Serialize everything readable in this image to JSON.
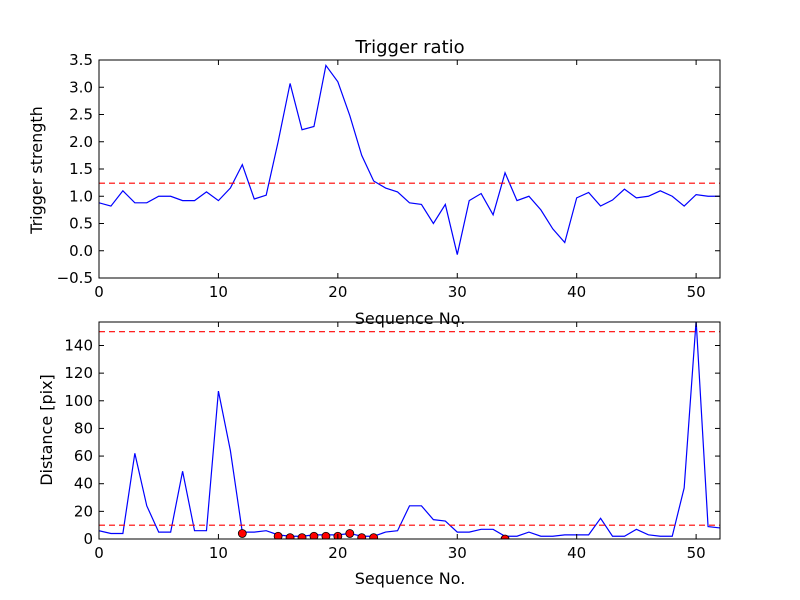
{
  "chart_data": [
    {
      "type": "line",
      "title": "Trigger ratio",
      "xlabel": "Sequence No.",
      "ylabel": "Trigger strength",
      "xlim": [
        0,
        52
      ],
      "ylim": [
        -0.5,
        3.5
      ],
      "xticks": [
        0,
        10,
        20,
        30,
        40,
        50
      ],
      "yticks": [
        -0.5,
        0.0,
        0.5,
        1.0,
        1.5,
        2.0,
        2.5,
        3.0,
        3.5
      ],
      "ytick_labels": [
        "−0.5",
        "0.0",
        "0.5",
        "1.0",
        "1.5",
        "2.0",
        "2.5",
        "3.0",
        "3.5"
      ],
      "grid": false,
      "series": [
        {
          "color": "#0000ff",
          "style": "solid",
          "x": [
            0,
            1,
            2,
            3,
            4,
            5,
            6,
            7,
            8,
            9,
            10,
            11,
            12,
            13,
            14,
            15,
            16,
            17,
            18,
            19,
            20,
            21,
            22,
            23,
            24,
            25,
            26,
            27,
            28,
            29,
            30,
            31,
            32,
            33,
            34,
            35,
            36,
            37,
            38,
            39,
            40,
            41,
            42,
            43,
            44,
            45,
            46,
            47,
            48,
            49,
            50,
            51,
            52
          ],
          "values": [
            0.88,
            0.82,
            1.1,
            0.88,
            0.88,
            1.0,
            1.0,
            0.92,
            0.92,
            1.08,
            0.92,
            1.15,
            1.58,
            0.95,
            1.02,
            2.0,
            3.07,
            2.22,
            2.28,
            3.4,
            3.1,
            2.48,
            1.75,
            1.28,
            1.15,
            1.08,
            0.88,
            0.85,
            0.5,
            0.85,
            -0.07,
            0.92,
            1.05,
            0.66,
            1.43,
            0.92,
            1.0,
            0.75,
            0.4,
            0.15,
            0.97,
            1.07,
            0.82,
            0.93,
            1.13,
            0.97,
            1.0,
            1.1,
            1.0,
            0.82,
            1.03,
            1.0,
            1.0
          ]
        },
        {
          "color": "#ff0000",
          "style": "dashed",
          "x": [
            0,
            52
          ],
          "values": [
            1.24,
            1.24
          ]
        }
      ]
    },
    {
      "type": "line",
      "title": "",
      "xlabel": "Sequence No.",
      "ylabel": "Distance [pix]",
      "xlim": [
        0,
        52
      ],
      "ylim": [
        0,
        157
      ],
      "xticks": [
        0,
        10,
        20,
        30,
        40,
        50
      ],
      "yticks": [
        0,
        20,
        40,
        60,
        80,
        100,
        120,
        140
      ],
      "ytick_labels": [
        "0",
        "20",
        "40",
        "60",
        "80",
        "100",
        "120",
        "140"
      ],
      "grid": false,
      "series": [
        {
          "color": "#0000ff",
          "style": "solid",
          "x": [
            0,
            1,
            2,
            3,
            4,
            5,
            6,
            7,
            8,
            9,
            10,
            11,
            12,
            13,
            14,
            15,
            16,
            17,
            18,
            19,
            20,
            21,
            22,
            23,
            24,
            25,
            26,
            27,
            28,
            29,
            30,
            31,
            32,
            33,
            34,
            35,
            36,
            37,
            38,
            39,
            40,
            41,
            42,
            43,
            44,
            45,
            46,
            47,
            48,
            49,
            50,
            51,
            52
          ],
          "values": [
            6,
            4,
            4,
            62,
            24,
            5,
            5,
            49,
            6,
            6,
            107,
            64,
            5,
            5,
            6,
            3,
            2,
            2,
            3,
            3,
            3,
            4,
            2,
            2,
            5,
            6,
            24,
            24,
            14,
            13,
            5,
            5,
            7,
            7,
            2,
            2,
            5,
            2,
            2,
            3,
            3,
            3,
            15,
            2,
            2,
            7,
            3,
            2,
            2,
            37,
            158,
            9,
            8
          ]
        },
        {
          "color": "#ff0000",
          "style": "dashed",
          "x": [
            0,
            52
          ],
          "values": [
            10,
            10
          ]
        },
        {
          "color": "#ff0000",
          "style": "dashed",
          "x": [
            0,
            52
          ],
          "values": [
            150,
            150
          ]
        },
        {
          "color": "#ff0000",
          "style": "markers",
          "x": [
            12,
            15,
            16,
            17,
            18,
            19,
            20,
            21,
            22,
            23,
            34
          ],
          "values": [
            4,
            2,
            1,
            1,
            2,
            2,
            2,
            4,
            1,
            1,
            0
          ]
        }
      ]
    }
  ]
}
